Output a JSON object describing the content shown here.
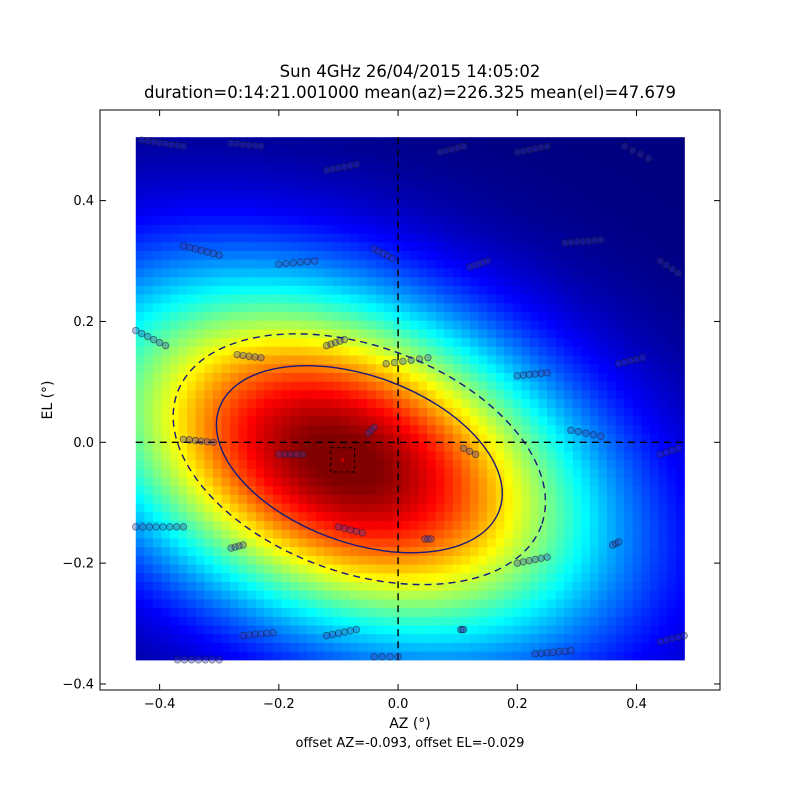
{
  "chart_data": {
    "type": "heatmap",
    "title_line1": "Sun 4GHz 26/04/2015 14:05:02",
    "title_line2": "duration=0:14:21.001000 mean(az)=226.325 mean(el)=47.679",
    "xlabel": "AZ (°)",
    "ylabel": "EL (°)",
    "xlim": [
      -0.5,
      0.54
    ],
    "ylim": [
      -0.41,
      0.55
    ],
    "image_extent": {
      "x": [
        -0.44,
        0.48
      ],
      "y": [
        -0.36,
        0.505
      ]
    },
    "xticks": [
      -0.4,
      -0.2,
      0.0,
      0.2,
      0.4
    ],
    "xtick_labels": [
      "−0.4",
      "−0.2",
      "0.0",
      "0.2",
      "0.4"
    ],
    "yticks": [
      0.4,
      0.2,
      0.0,
      -0.2,
      -0.4
    ],
    "ytick_labels": [
      "0.4",
      "0.2",
      "0.0",
      "−0.2",
      "−0.4"
    ],
    "colormap": "jet",
    "beam_model": {
      "center": [
        -0.093,
        -0.029
      ],
      "sigma_major": 0.3,
      "sigma_minor": 0.18,
      "rotation_deg": -22
    },
    "contours": [
      {
        "style": "solid",
        "center": [
          -0.065,
          -0.028
        ],
        "semi_major": 0.25,
        "semi_minor": 0.14,
        "rotation_deg": -20
      },
      {
        "style": "dashed",
        "center": [
          -0.065,
          -0.028
        ],
        "semi_major": 0.325,
        "semi_minor": 0.19,
        "rotation_deg": -20
      }
    ],
    "crosshair": {
      "az": 0.0,
      "el": 0.0
    },
    "offset_marker": {
      "az": -0.093,
      "el": -0.029,
      "box_halfwidth": 0.02
    },
    "scan_points": [
      {
        "start": [
          -0.43,
          0.5
        ],
        "end": [
          -0.36,
          0.49
        ],
        "n": 8
      },
      {
        "start": [
          -0.28,
          0.495
        ],
        "end": [
          -0.23,
          0.49
        ],
        "n": 6
      },
      {
        "start": [
          -0.12,
          0.45
        ],
        "end": [
          -0.07,
          0.46
        ],
        "n": 6
      },
      {
        "start": [
          0.07,
          0.48
        ],
        "end": [
          0.11,
          0.49
        ],
        "n": 5
      },
      {
        "start": [
          0.2,
          0.48
        ],
        "end": [
          0.25,
          0.49
        ],
        "n": 6
      },
      {
        "start": [
          0.38,
          0.49
        ],
        "end": [
          0.42,
          0.47
        ],
        "n": 4
      },
      {
        "start": [
          -0.36,
          0.325
        ],
        "end": [
          -0.3,
          0.31
        ],
        "n": 7
      },
      {
        "start": [
          -0.2,
          0.295
        ],
        "end": [
          -0.14,
          0.3
        ],
        "n": 6
      },
      {
        "start": [
          -0.04,
          0.32
        ],
        "end": [
          -0.01,
          0.305
        ],
        "n": 5
      },
      {
        "start": [
          0.12,
          0.29
        ],
        "end": [
          0.15,
          0.3
        ],
        "n": 5
      },
      {
        "start": [
          0.28,
          0.33
        ],
        "end": [
          0.34,
          0.335
        ],
        "n": 7
      },
      {
        "start": [
          0.44,
          0.3
        ],
        "end": [
          0.47,
          0.28
        ],
        "n": 4
      },
      {
        "start": [
          -0.44,
          0.185
        ],
        "end": [
          -0.39,
          0.16
        ],
        "n": 6
      },
      {
        "start": [
          -0.27,
          0.145
        ],
        "end": [
          -0.23,
          0.14
        ],
        "n": 5
      },
      {
        "start": [
          -0.12,
          0.16
        ],
        "end": [
          -0.09,
          0.17
        ],
        "n": 5
      },
      {
        "start": [
          -0.02,
          0.13
        ],
        "end": [
          0.05,
          0.14
        ],
        "n": 6
      },
      {
        "start": [
          0.2,
          0.11
        ],
        "end": [
          0.25,
          0.115
        ],
        "n": 6
      },
      {
        "start": [
          0.37,
          0.13
        ],
        "end": [
          0.41,
          0.14
        ],
        "n": 5
      },
      {
        "start": [
          -0.36,
          0.005
        ],
        "end": [
          -0.31,
          0.0
        ],
        "n": 6
      },
      {
        "start": [
          -0.2,
          -0.02
        ],
        "end": [
          -0.16,
          -0.02
        ],
        "n": 5
      },
      {
        "start": [
          -0.05,
          0.015
        ],
        "end": [
          -0.04,
          0.025
        ],
        "n": 3
      },
      {
        "start": [
          0.11,
          -0.01
        ],
        "end": [
          0.13,
          -0.02
        ],
        "n": 3
      },
      {
        "start": [
          0.29,
          0.02
        ],
        "end": [
          0.34,
          0.01
        ],
        "n": 5
      },
      {
        "start": [
          0.44,
          -0.02
        ],
        "end": [
          0.47,
          -0.01
        ],
        "n": 4
      },
      {
        "start": [
          -0.44,
          -0.14
        ],
        "end": [
          -0.36,
          -0.14
        ],
        "n": 8
      },
      {
        "start": [
          -0.28,
          -0.175
        ],
        "end": [
          -0.26,
          -0.17
        ],
        "n": 4
      },
      {
        "start": [
          -0.1,
          -0.14
        ],
        "end": [
          -0.06,
          -0.15
        ],
        "n": 5
      },
      {
        "start": [
          0.045,
          -0.16
        ],
        "end": [
          0.055,
          -0.16
        ],
        "n": 3
      },
      {
        "start": [
          0.2,
          -0.2
        ],
        "end": [
          0.25,
          -0.19
        ],
        "n": 6
      },
      {
        "start": [
          0.36,
          -0.17
        ],
        "end": [
          0.37,
          -0.165
        ],
        "n": 3
      },
      {
        "start": [
          -0.26,
          -0.32
        ],
        "end": [
          -0.21,
          -0.315
        ],
        "n": 6
      },
      {
        "start": [
          -0.12,
          -0.32
        ],
        "end": [
          -0.07,
          -0.31
        ],
        "n": 6
      },
      {
        "start": [
          0.105,
          -0.31
        ],
        "end": [
          0.11,
          -0.31
        ],
        "n": 3
      },
      {
        "start": [
          0.23,
          -0.35
        ],
        "end": [
          0.29,
          -0.345
        ],
        "n": 7
      },
      {
        "start": [
          -0.37,
          -0.36
        ],
        "end": [
          -0.3,
          -0.36
        ],
        "n": 7
      },
      {
        "start": [
          -0.04,
          -0.355
        ],
        "end": [
          0.0,
          -0.355
        ],
        "n": 4
      },
      {
        "start": [
          0.44,
          -0.33
        ],
        "end": [
          0.48,
          -0.32
        ],
        "n": 5
      }
    ],
    "footer": "offset AZ=-0.093, offset EL=-0.029",
    "colors": {
      "contour": "#1a1a7a",
      "crosshair": "#000000",
      "scan_point_fill": "#3b3baa",
      "marker": "#cc0000"
    }
  }
}
